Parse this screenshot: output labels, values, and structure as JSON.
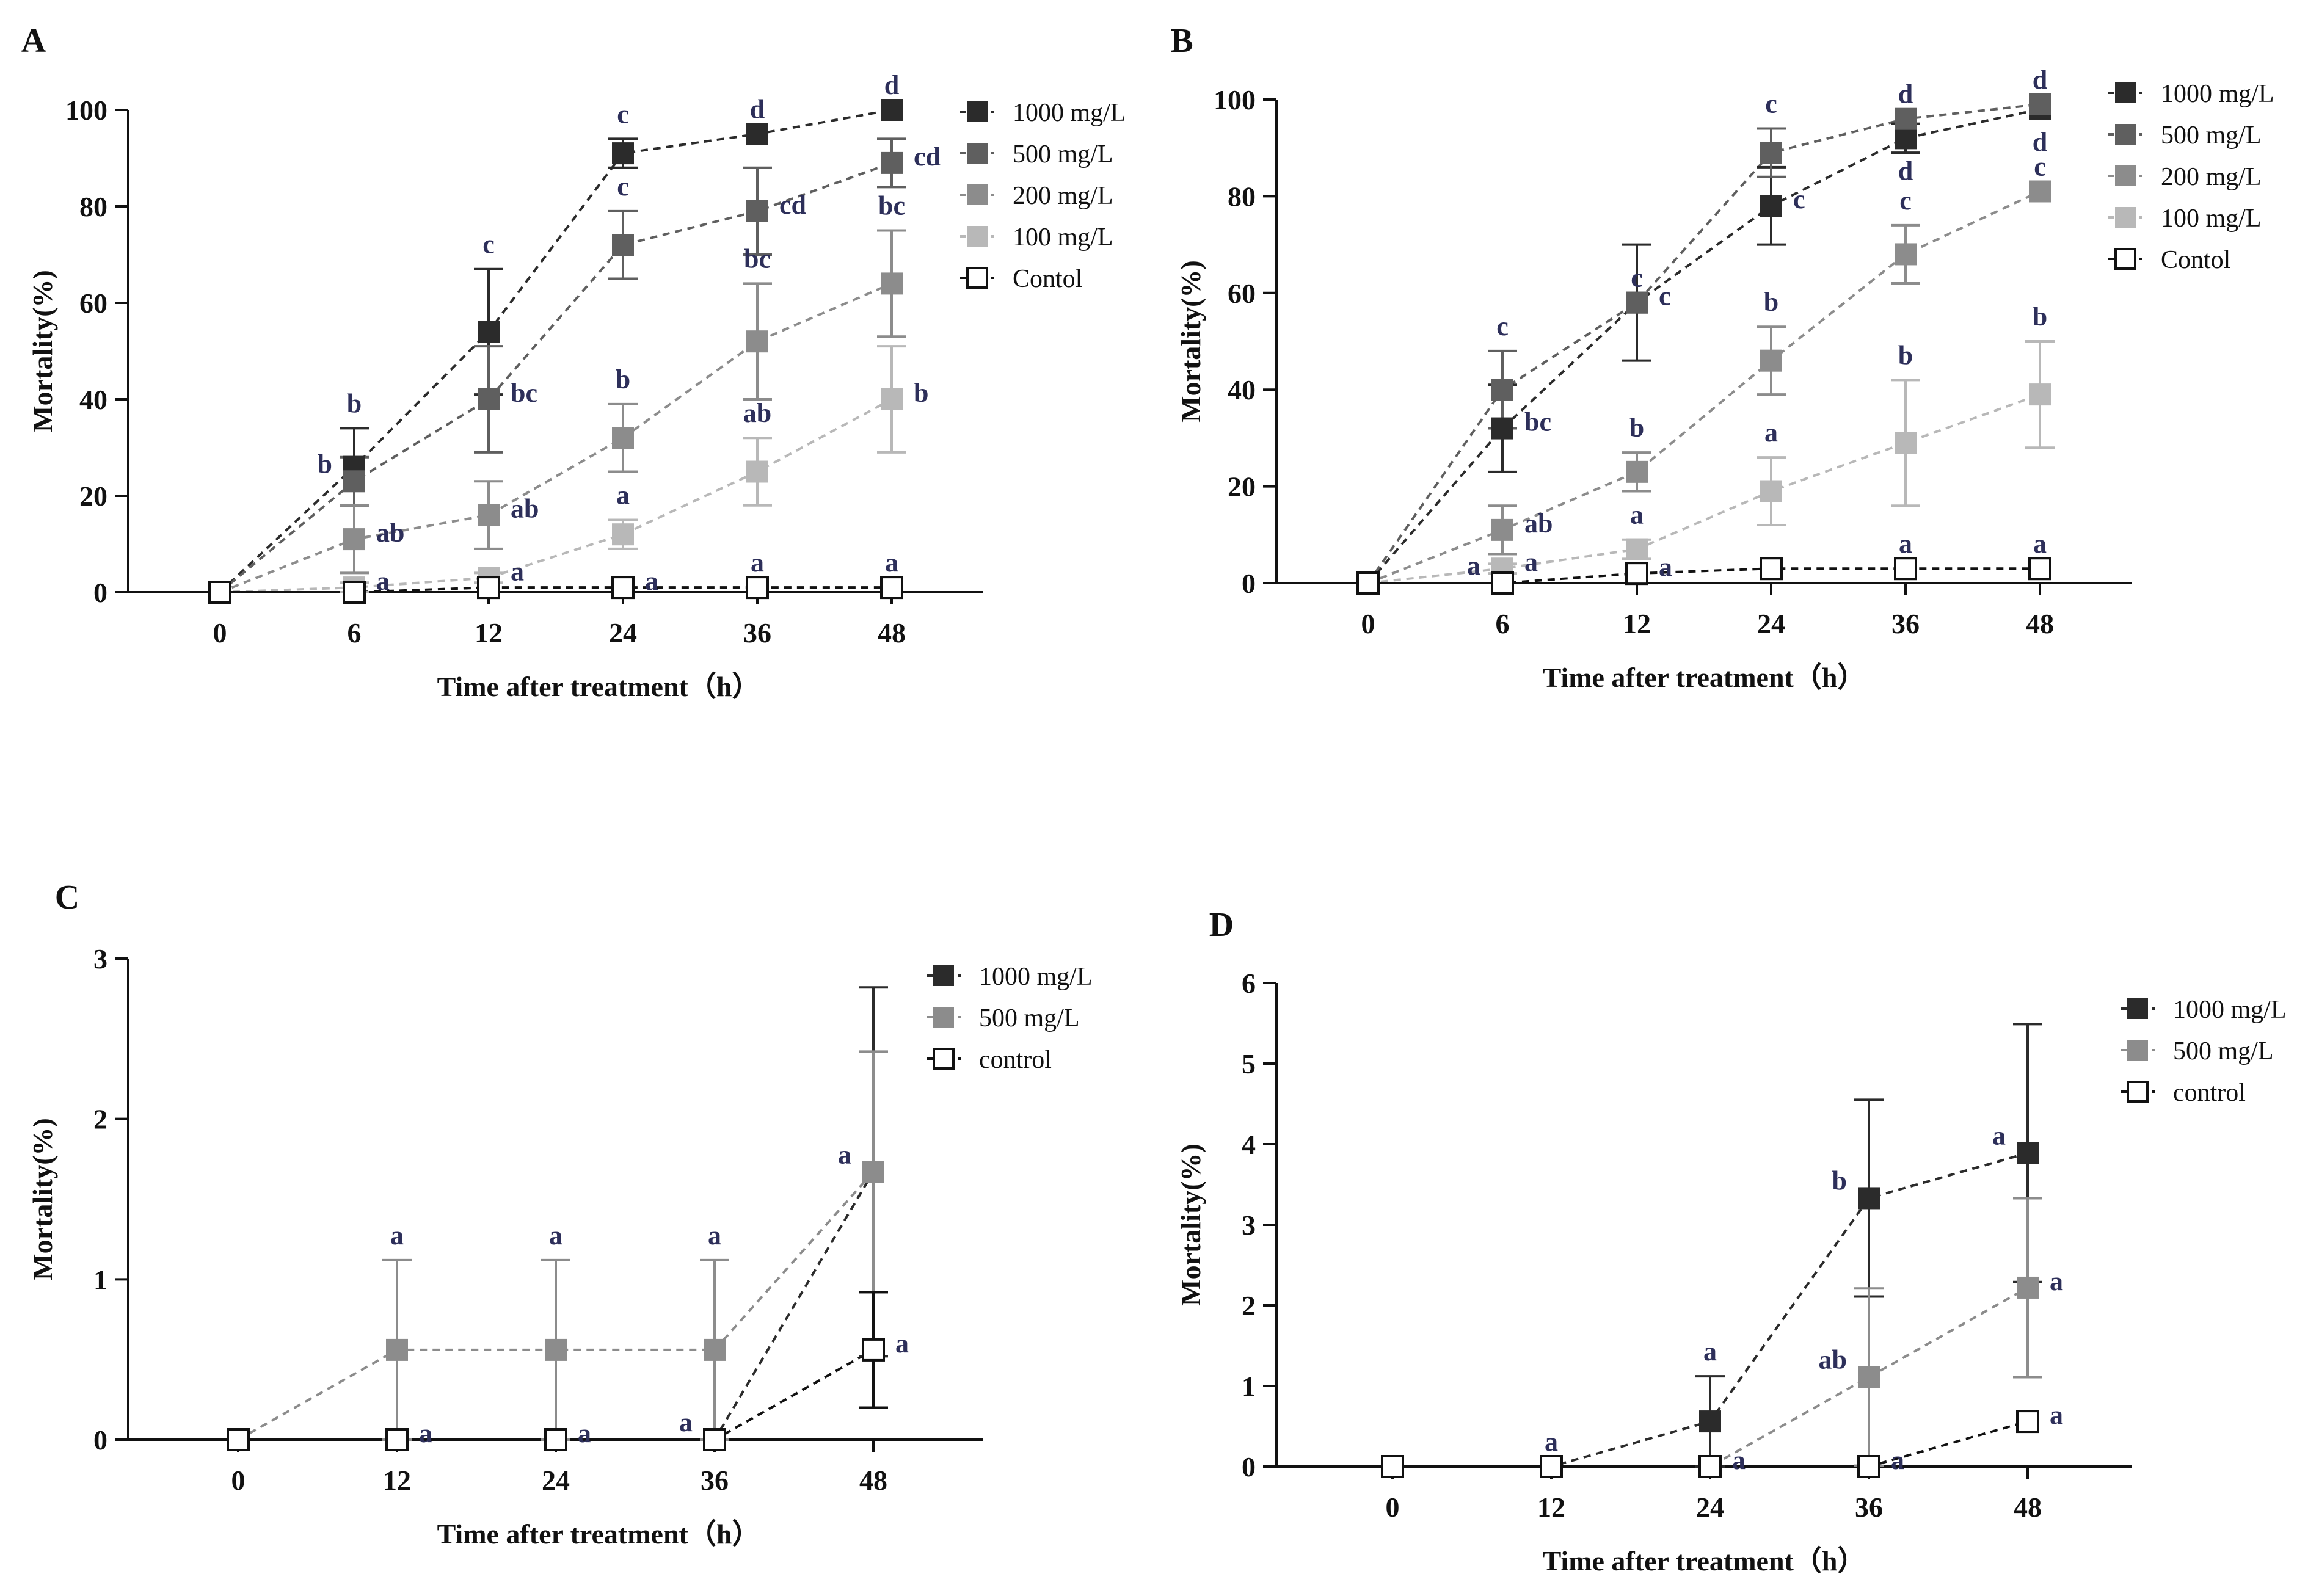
{
  "xlabel": "Time after treatment（h）",
  "ylabel": "Mortality(%)",
  "chart_data": [
    {
      "panel": "A",
      "type": "line",
      "categories": [
        "0",
        "6",
        "12",
        "24",
        "36",
        "48"
      ],
      "ylim": [
        0,
        100
      ],
      "yticks": [
        0,
        20,
        40,
        60,
        80,
        100
      ],
      "series": [
        {
          "name": "1000 mg/L",
          "color": "#2b2b2b",
          "open": false,
          "values": [
            0,
            26,
            54,
            91,
            95,
            100
          ],
          "err": [
            0,
            8,
            13,
            3,
            0,
            0
          ],
          "sig": [
            "",
            "b",
            "c",
            "c",
            "d",
            "d"
          ],
          "sigpos": [
            "",
            "top",
            "top",
            "top",
            "top",
            "top"
          ]
        },
        {
          "name": "500 mg/L",
          "color": "#5f5f5f",
          "open": false,
          "values": [
            0,
            23,
            40,
            72,
            79,
            89
          ],
          "err": [
            0,
            5,
            11,
            7,
            9,
            5
          ],
          "sig": [
            "",
            "b",
            "bc",
            "c",
            "cd",
            "cd"
          ],
          "sigpos": [
            "",
            "left",
            "right",
            "top",
            "right",
            "right"
          ]
        },
        {
          "name": "200 mg/L",
          "color": "#8c8c8c",
          "open": false,
          "values": [
            0,
            11,
            16,
            32,
            52,
            64
          ],
          "err": [
            0,
            7,
            7,
            7,
            12,
            11
          ],
          "sig": [
            "",
            "ab",
            "ab",
            "b",
            "bc",
            "bc"
          ],
          "sigpos": [
            "",
            "right",
            "right",
            "top",
            "top",
            "top"
          ]
        },
        {
          "name": "100 mg/L",
          "color": "#b8b8b8",
          "open": false,
          "values": [
            0,
            1,
            3,
            12,
            25,
            40
          ],
          "err": [
            0,
            1,
            1,
            3,
            7,
            11
          ],
          "sig": [
            "",
            "a",
            "a",
            "a",
            "ab",
            "b"
          ],
          "sigpos": [
            "",
            "right",
            "right",
            "top",
            "top",
            "right"
          ]
        },
        {
          "name": "Contol",
          "color": "#ffffff",
          "open": true,
          "values": [
            0,
            0,
            1,
            1,
            1,
            1
          ],
          "err": [
            0,
            0,
            0,
            0,
            0,
            0
          ],
          "sig": [
            "",
            "",
            "",
            "a",
            "a",
            "a"
          ],
          "sigpos": [
            "",
            "",
            "",
            "right",
            "top",
            "top"
          ]
        }
      ]
    },
    {
      "panel": "B",
      "type": "line",
      "categories": [
        "0",
        "6",
        "12",
        "24",
        "36",
        "48"
      ],
      "ylim": [
        0,
        100
      ],
      "yticks": [
        0,
        20,
        40,
        60,
        80,
        100
      ],
      "series": [
        {
          "name": "1000 mg/L",
          "color": "#2b2b2b",
          "open": false,
          "values": [
            0,
            32,
            58,
            78,
            92,
            98
          ],
          "err": [
            0,
            9,
            12,
            8,
            3,
            0
          ],
          "sig": [
            "",
            "bc",
            "c",
            "c",
            "d",
            "d"
          ],
          "sigpos": [
            "",
            "right",
            "right",
            "right",
            "below",
            "below"
          ]
        },
        {
          "name": "500 mg/L",
          "color": "#5f5f5f",
          "open": false,
          "values": [
            0,
            40,
            58,
            89,
            96,
            99
          ],
          "err": [
            0,
            8,
            0,
            5,
            0,
            0
          ],
          "sig": [
            "",
            "c",
            "c",
            "c",
            "d",
            "d"
          ],
          "sigpos": [
            "",
            "top",
            "top",
            "top",
            "top",
            "top"
          ]
        },
        {
          "name": "200 mg/L",
          "color": "#8c8c8c",
          "open": false,
          "values": [
            0,
            11,
            23,
            46,
            68,
            81
          ],
          "err": [
            0,
            5,
            4,
            7,
            6,
            0
          ],
          "sig": [
            "",
            "ab",
            "b",
            "b",
            "c",
            "c"
          ],
          "sigpos": [
            "",
            "right",
            "top",
            "top",
            "top",
            "top"
          ]
        },
        {
          "name": "100 mg/L",
          "color": "#b8b8b8",
          "open": false,
          "values": [
            0,
            3,
            7,
            19,
            29,
            39
          ],
          "err": [
            0,
            1,
            2,
            7,
            13,
            11
          ],
          "sig": [
            "",
            "a",
            "a",
            "a",
            "b",
            "b"
          ],
          "sigpos": [
            "",
            "right",
            "top",
            "top",
            "top",
            "top"
          ]
        },
        {
          "name": "Contol",
          "color": "#ffffff",
          "open": true,
          "values": [
            0,
            0,
            2,
            3,
            3,
            3
          ],
          "err": [
            0,
            0,
            0,
            0,
            0,
            0
          ],
          "sig": [
            "",
            "a",
            "a",
            "",
            "a",
            "a"
          ],
          "sigpos": [
            "",
            "left",
            "right",
            "",
            "top",
            "top"
          ]
        }
      ]
    },
    {
      "panel": "C",
      "type": "line",
      "categories": [
        "0",
        "12",
        "24",
        "36",
        "48"
      ],
      "ylim": [
        0,
        3
      ],
      "yticks": [
        0,
        1,
        2,
        3
      ],
      "series": [
        {
          "name": "1000 mg/L",
          "color": "#2b2b2b",
          "open": false,
          "values": [
            0,
            0,
            0,
            0,
            1.67
          ],
          "err": [
            0,
            0,
            0,
            0,
            1.15
          ],
          "sig": [
            "",
            "a",
            "a",
            "a",
            "a"
          ],
          "sigpos": [
            "",
            "right",
            "right",
            "left",
            "left"
          ]
        },
        {
          "name": "500 mg/L",
          "color": "#8c8c8c",
          "open": false,
          "values": [
            0,
            0.56,
            0.56,
            0.56,
            1.67
          ],
          "err": [
            0,
            0.56,
            0.56,
            0.56,
            0.75
          ],
          "sig": [
            "",
            "a",
            "a",
            "a",
            ""
          ],
          "sigpos": [
            "",
            "top",
            "top",
            "top",
            ""
          ]
        },
        {
          "name": "control",
          "color": "#ffffff",
          "open": true,
          "values": [
            0,
            0,
            0,
            0,
            0.56
          ],
          "err": [
            0,
            0,
            0,
            0,
            0.36
          ],
          "sig": [
            "",
            "",
            "",
            "",
            "a"
          ],
          "sigpos": [
            "",
            "",
            "",
            "",
            "right"
          ]
        }
      ]
    },
    {
      "panel": "D",
      "type": "line",
      "categories": [
        "0",
        "12",
        "24",
        "36",
        "48"
      ],
      "ylim": [
        0,
        6
      ],
      "yticks": [
        0,
        1,
        2,
        3,
        4,
        5,
        6
      ],
      "series": [
        {
          "name": "1000 mg/L",
          "color": "#2b2b2b",
          "open": false,
          "values": [
            0,
            0,
            0.56,
            3.33,
            3.89
          ],
          "err": [
            0,
            0,
            0.56,
            1.22,
            1.6
          ],
          "sig": [
            "",
            "a",
            "a",
            "b",
            "a"
          ],
          "sigpos": [
            "",
            "top",
            "top",
            "left",
            "left"
          ]
        },
        {
          "name": "500 mg/L",
          "color": "#8c8c8c",
          "open": false,
          "values": [
            0,
            0,
            0,
            1.11,
            2.22
          ],
          "err": [
            0,
            0,
            0,
            1.1,
            1.11
          ],
          "sig": [
            "",
            "",
            "a",
            "ab",
            "a"
          ],
          "sigpos": [
            "",
            "",
            "right",
            "left",
            "right"
          ]
        },
        {
          "name": "control",
          "color": "#ffffff",
          "open": true,
          "values": [
            0,
            0,
            0,
            0,
            0.56
          ],
          "err": [
            0,
            0,
            0,
            0,
            0
          ],
          "sig": [
            "",
            "",
            "",
            "a",
            "a"
          ],
          "sigpos": [
            "",
            "",
            "",
            "right",
            "right"
          ]
        }
      ]
    }
  ]
}
